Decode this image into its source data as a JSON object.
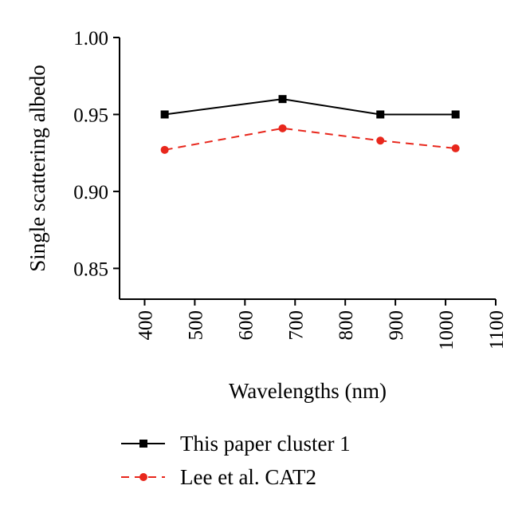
{
  "chart_data": {
    "type": "line",
    "xlabel": "Wavelengths (nm)",
    "ylabel": "Single scattering albedo",
    "xlim": [
      350,
      1100
    ],
    "ylim": [
      0.83,
      1.0
    ],
    "xticks": [
      400,
      500,
      600,
      700,
      800,
      900,
      1000,
      1100
    ],
    "yticks": [
      0.85,
      0.9,
      0.95,
      1.0
    ],
    "xtick_labels": [
      "400",
      "500",
      "600",
      "700",
      "800",
      "900",
      "1000",
      "1100"
    ],
    "ytick_labels": [
      "0.85",
      "0.90",
      "0.95",
      "1.00"
    ],
    "grid": false,
    "legend_position": "bottom",
    "series": [
      {
        "name": "This paper cluster 1",
        "x": [
          440,
          675,
          870,
          1020
        ],
        "y": [
          0.95,
          0.96,
          0.95,
          0.95
        ],
        "color": "#000000",
        "line_style": "solid",
        "marker": "square"
      },
      {
        "name": "Lee et al. CAT2",
        "x": [
          440,
          675,
          870,
          1020
        ],
        "y": [
          0.927,
          0.941,
          0.933,
          0.928
        ],
        "color": "#e8271c",
        "line_style": "dashed",
        "marker": "circle"
      }
    ]
  }
}
